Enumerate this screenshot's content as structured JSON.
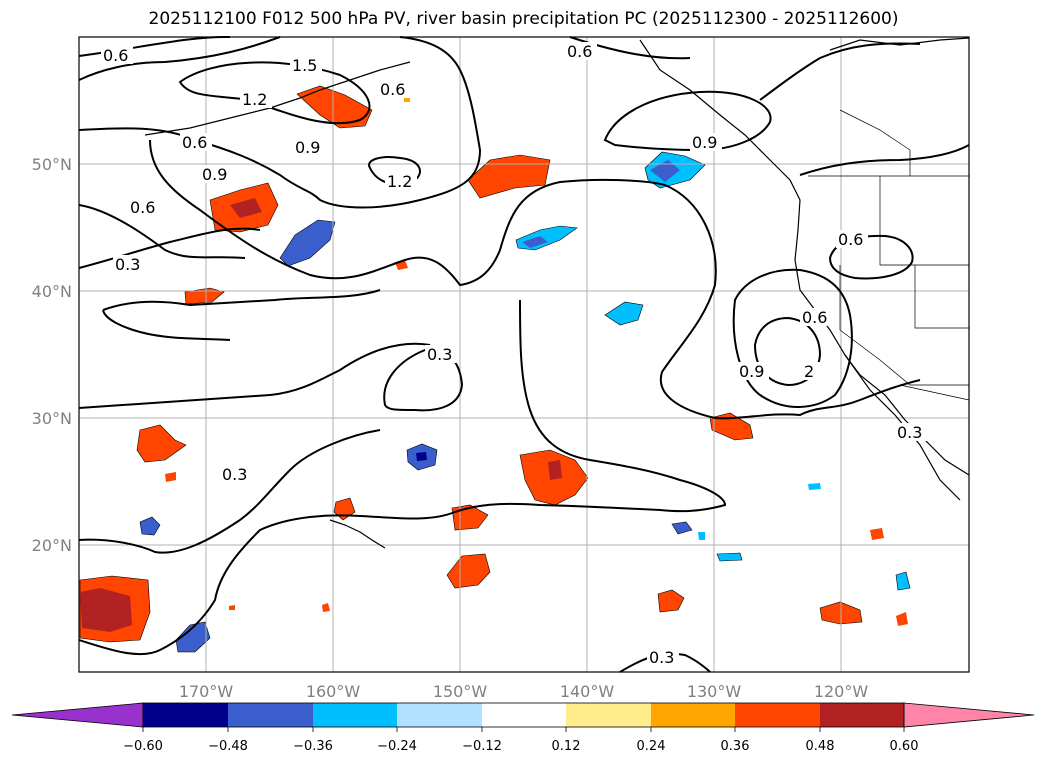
{
  "title": "2025112100 F012 500 hPa PV, river basin precipitation PC (2025112300 - 2025112600)",
  "map": {
    "lon_range": [
      -180,
      -110
    ],
    "lat_range": [
      10,
      60
    ],
    "lat_labels": [
      "20°N",
      "30°N",
      "40°N",
      "50°N"
    ],
    "lon_labels": [
      "170°W",
      "160°W",
      "150°W",
      "140°W",
      "130°W",
      "120°W"
    ],
    "contour_labels": [
      "0.6",
      "1.5",
      "1.2",
      "0.6",
      "0.9",
      "0.6",
      "0.9",
      "0.6",
      "0.3",
      "1.2",
      "0.6",
      "0.9",
      "0.6",
      "0.3",
      "0.3",
      "0.6",
      "0.9",
      "2",
      "0.3",
      "0.3"
    ]
  },
  "colorbar": {
    "ticks": [
      "−0.60",
      "−0.48",
      "−0.36",
      "−0.24",
      "−0.12",
      "0.12",
      "0.24",
      "0.36",
      "0.48",
      "0.60"
    ],
    "colors": [
      "#9932cc",
      "#00008b",
      "#3a5fcd",
      "#00bfff",
      "#b0e2ff",
      "#ffffff",
      "#ffec8b",
      "#ffa500",
      "#ff4500",
      "#b22222",
      "#ff85a8"
    ]
  }
}
